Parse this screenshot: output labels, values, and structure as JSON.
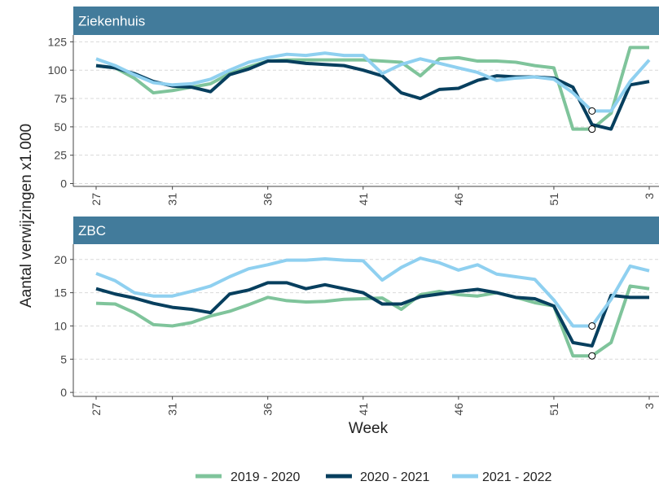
{
  "chart_data": [
    {
      "type": "line",
      "title": "Ziekenhuis",
      "ylabel": "Aantal verwijzingen x1.000",
      "categories": [
        "27",
        null,
        null,
        null,
        "31",
        null,
        null,
        null,
        null,
        "36",
        null,
        null,
        null,
        null,
        "41",
        null,
        null,
        null,
        null,
        "46",
        null,
        null,
        null,
        null,
        "51",
        null,
        null,
        null,
        null,
        "3"
      ],
      "series": [
        {
          "name": "2019 - 2020",
          "color": "#7fc49b",
          "values": [
            104,
            102,
            93,
            80,
            82,
            85,
            88,
            97,
            103,
            108,
            109,
            109,
            109,
            109,
            109,
            108,
            107,
            95,
            110,
            111,
            108,
            108,
            107,
            104,
            102,
            48,
            48,
            62,
            120,
            120
          ]
        },
        {
          "name": "2020 - 2021",
          "color": "#073f5e",
          "values": [
            104,
            102,
            97,
            90,
            86,
            85,
            81,
            96,
            101,
            108,
            108,
            106,
            105,
            104,
            100,
            95,
            80,
            75,
            83,
            84,
            91,
            95,
            94,
            94,
            93,
            85,
            52,
            48,
            87,
            90
          ]
        },
        {
          "name": "2021 - 2022",
          "color": "#8fd0f0",
          "values": [
            110,
            104,
            96,
            89,
            87,
            88,
            92,
            100,
            107,
            111,
            114,
            113,
            115,
            113,
            113,
            97,
            105,
            110,
            106,
            102,
            98,
            91,
            93,
            94,
            92,
            80,
            64,
            64,
            90,
            109
          ]
        }
      ],
      "marker_index": 26,
      "marker_series": [
        0,
        2
      ],
      "ylim": [
        -2.5,
        131
      ],
      "yticks": [
        0,
        25,
        50,
        75,
        100,
        125
      ],
      "grid": true
    },
    {
      "type": "line",
      "title": "ZBC",
      "xlabel": "Week",
      "categories": [
        "27",
        null,
        null,
        null,
        "31",
        null,
        null,
        null,
        null,
        "36",
        null,
        null,
        null,
        null,
        "41",
        null,
        null,
        null,
        null,
        "46",
        null,
        null,
        null,
        null,
        "51",
        null,
        null,
        null,
        null,
        "3"
      ],
      "series": [
        {
          "name": "2019 - 2020",
          "color": "#7fc49b",
          "values": [
            13.4,
            13.3,
            12,
            10.2,
            10,
            10.5,
            11.5,
            12.2,
            13.2,
            14.3,
            13.8,
            13.6,
            13.7,
            14,
            14.1,
            14.2,
            12.5,
            14.7,
            15.2,
            14.7,
            14.5,
            15,
            14.3,
            13.5,
            13,
            5.5,
            5.5,
            7.5,
            16,
            15.6
          ]
        },
        {
          "name": "2020 - 2021",
          "color": "#073f5e",
          "values": [
            15.6,
            14.8,
            14.2,
            13.4,
            12.8,
            12.5,
            12,
            14.8,
            15.4,
            16.5,
            16.5,
            15.6,
            16.2,
            15.6,
            15,
            13.3,
            13.3,
            14.4,
            14.8,
            15.2,
            15.5,
            15,
            14.3,
            14.1,
            13,
            7.5,
            7,
            14.6,
            14.3,
            14.3
          ]
        },
        {
          "name": "2021 - 2022",
          "color": "#8fd0f0",
          "values": [
            17.9,
            16.8,
            15,
            14.5,
            14.5,
            15.2,
            16,
            17.4,
            18.6,
            19.2,
            19.9,
            19.9,
            20.1,
            19.9,
            19.8,
            16.9,
            18.8,
            20.2,
            19.5,
            18.4,
            19.2,
            17.8,
            17.4,
            17,
            13.9,
            10,
            10,
            14,
            19,
            18.3
          ]
        }
      ],
      "marker_index": 26,
      "marker_series": [
        0,
        2
      ],
      "ylim": [
        -0.6,
        22.3
      ],
      "yticks": [
        0,
        5,
        10,
        15,
        20
      ],
      "grid": true
    }
  ]
}
